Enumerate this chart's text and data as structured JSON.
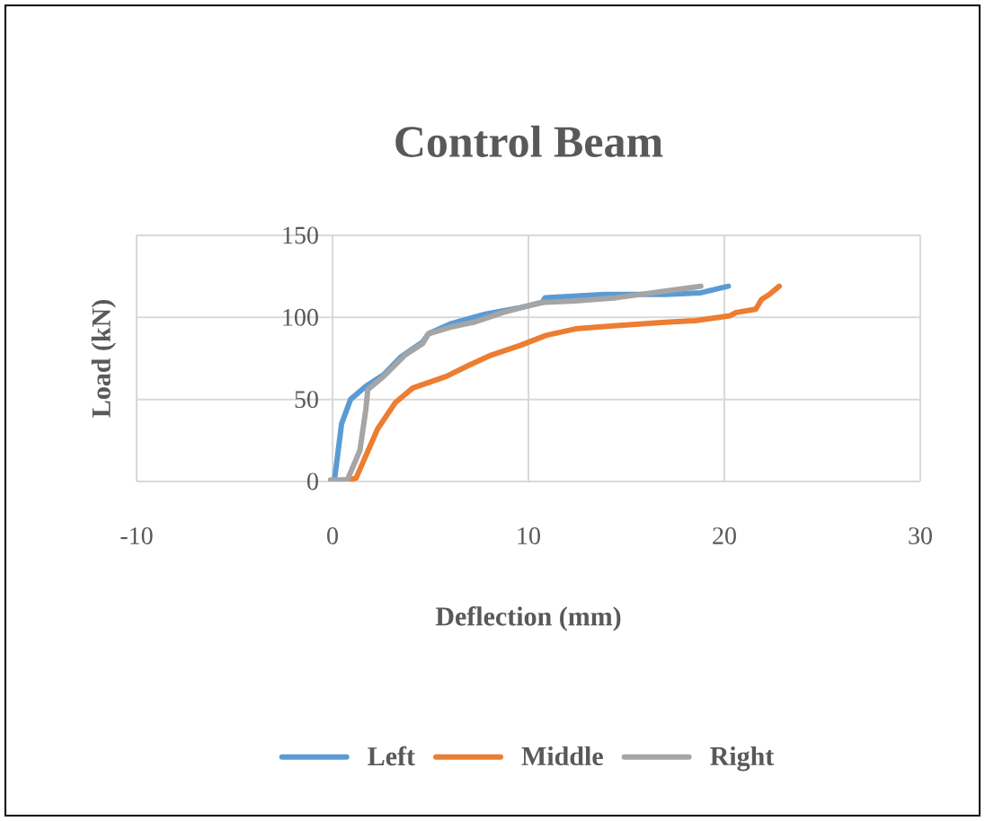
{
  "chart_data": {
    "type": "line",
    "title": "Control Beam",
    "xlabel": "Deflection (mm)",
    "ylabel": "Load (kN)",
    "xlim": [
      -10,
      30
    ],
    "xticks": [
      -10,
      0,
      10,
      20,
      30
    ],
    "ylim": [
      0,
      150
    ],
    "yticks": [
      0,
      50,
      100,
      150
    ],
    "grid": true,
    "legend": "bottom",
    "series": [
      {
        "name": "Left",
        "color": "#5b9bd5",
        "x": [
          0.1,
          0.46,
          0.92,
          1.7,
          2.6,
          3.5,
          4.6,
          4.9,
          6.0,
          7.8,
          9.6,
          10.7,
          10.85,
          13.9,
          17,
          18.8,
          20.2
        ],
        "values": [
          1,
          35,
          50,
          58,
          65,
          76,
          85,
          90,
          96,
          102,
          106,
          109,
          112,
          114,
          114,
          115,
          119
        ]
      },
      {
        "name": "Middle",
        "color": "#ed7d31",
        "x": [
          0.3,
          1.2,
          2.3,
          3.2,
          4.1,
          5.8,
          7,
          8.1,
          9.6,
          10.9,
          12.4,
          14.5,
          17,
          18.5,
          20.3,
          20.6,
          21.6,
          21.9,
          22.3,
          22.8
        ],
        "values": [
          0,
          2,
          32,
          48,
          57,
          64,
          71,
          77,
          83,
          89,
          93,
          95,
          97,
          98,
          101,
          103,
          105,
          111,
          114,
          119
        ]
      },
      {
        "name": "Right",
        "color": "#a5a5a5",
        "x": [
          -0.1,
          0.76,
          1.4,
          1.7,
          1.8,
          2.6,
          3.7,
          4.6,
          4.9,
          6,
          7.2,
          8.7,
          10.6,
          12.4,
          14.5,
          17,
          18.8
        ],
        "values": [
          1,
          1,
          19,
          44,
          56,
          64,
          77,
          84,
          90,
          94,
          97,
          103,
          109,
          110,
          112,
          116,
          119
        ]
      }
    ]
  }
}
